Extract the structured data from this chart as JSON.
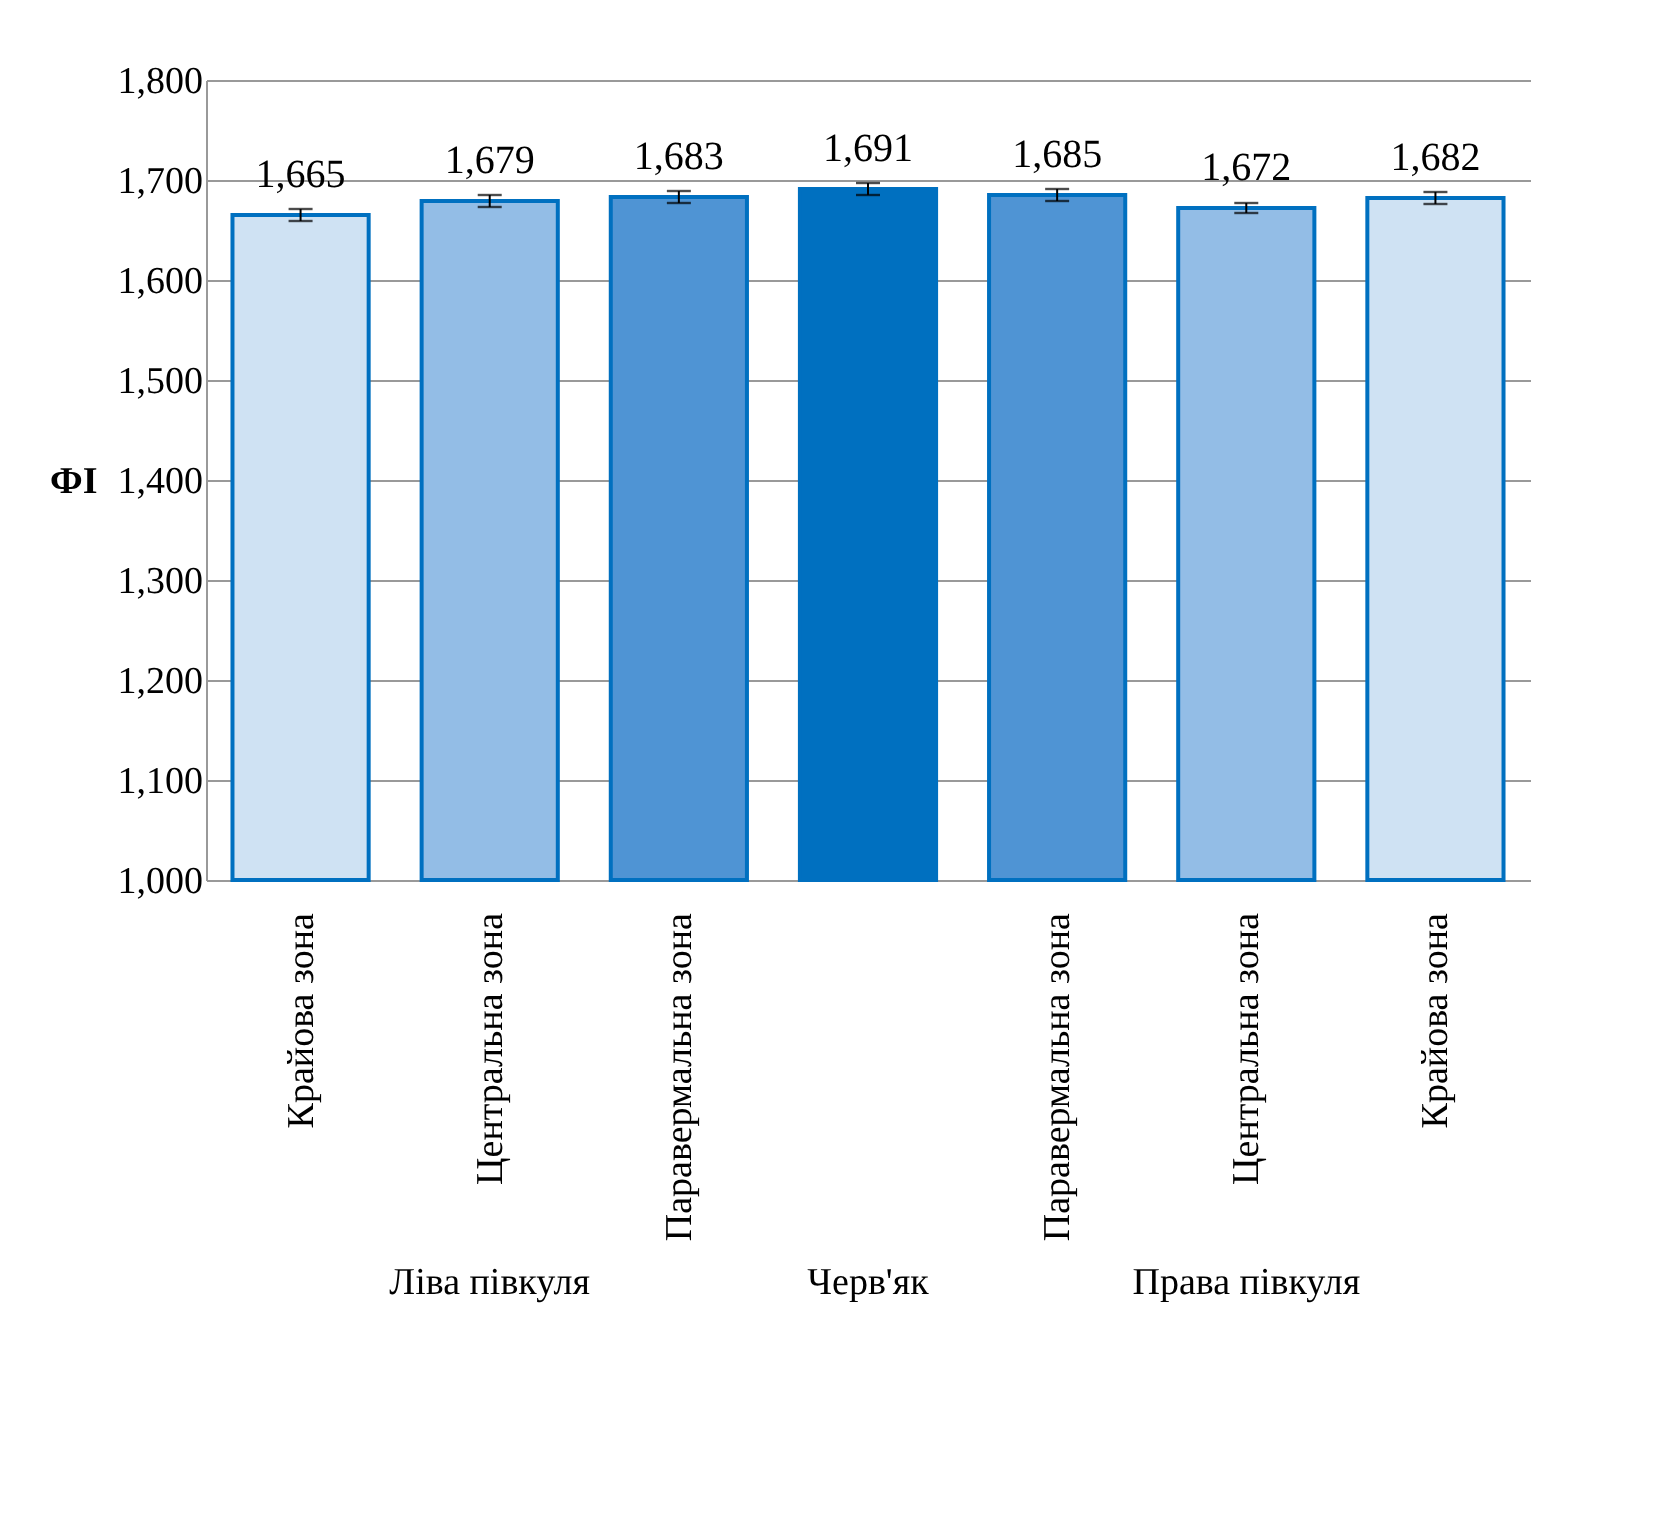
{
  "chart_data": {
    "type": "bar",
    "ylabel": "ФІ",
    "categories": [
      "Крайова зона",
      "Центральна зона",
      "Паравермальна зона",
      null,
      "Паравермальна зона",
      "Центральна зона",
      "Крайова зона"
    ],
    "values": [
      1665,
      1679,
      1683,
      1691,
      1685,
      1672,
      1682
    ],
    "colors": [
      "#cfe2f3",
      "#93bde6",
      "#4f94d4",
      "#0070c0",
      "#4f94d4",
      "#93bde6",
      "#cfe2f3"
    ],
    "errors": [
      6,
      6,
      6,
      6,
      6,
      5,
      6
    ],
    "value_labels": [
      "1,665",
      "1,679",
      "1,683",
      "1,691",
      "1,685",
      "1,672",
      "1,682"
    ],
    "ylim": [
      1000,
      1800
    ],
    "yticks": [
      {
        "value": 1000,
        "label": "1,000"
      },
      {
        "value": 1100,
        "label": "1,100"
      },
      {
        "value": 1200,
        "label": "1,200"
      },
      {
        "value": 1300,
        "label": "1,300"
      },
      {
        "value": 1400,
        "label": "1,400"
      },
      {
        "value": 1500,
        "label": "1,500"
      },
      {
        "value": 1600,
        "label": "1,600"
      },
      {
        "value": 1700,
        "label": "1,700"
      },
      {
        "value": 1800,
        "label": "1,800"
      }
    ],
    "grid": "y",
    "annotations": [
      "Ліва півкуля",
      "Черв'як",
      "Права півкуля"
    ]
  }
}
